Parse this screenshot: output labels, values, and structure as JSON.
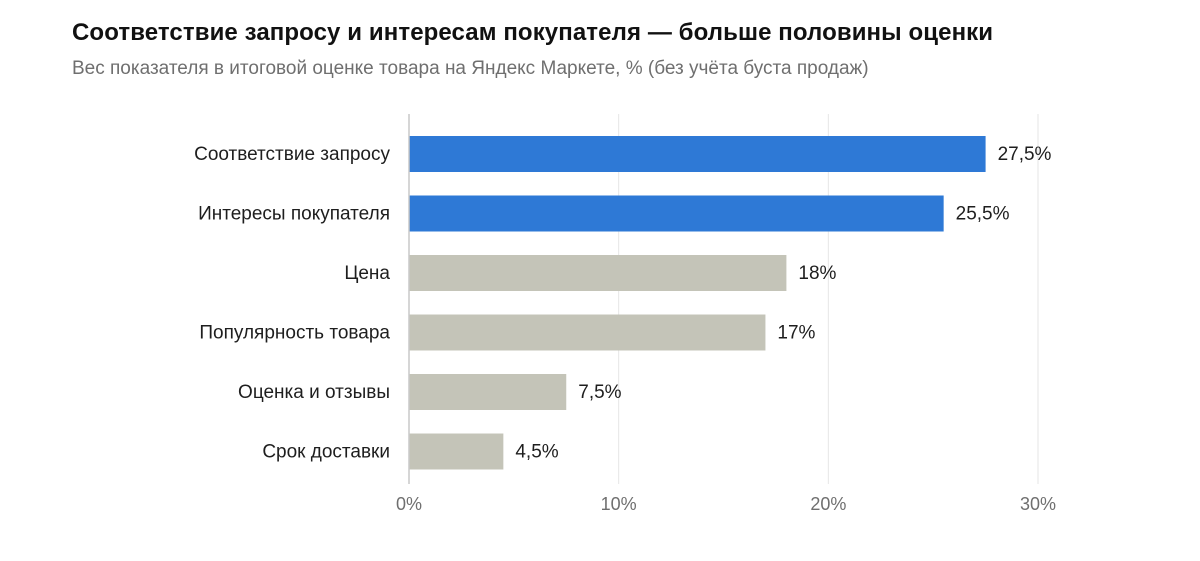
{
  "chart_data": {
    "type": "bar",
    "orientation": "horizontal",
    "title": "Соответствие запросу и интересам покупателя — больше половины оценки",
    "subtitle": "Вес показателя в итоговой оценке товара на Яндекс Маркете, % (без учёта буста продаж)",
    "xlabel": "",
    "ylabel": "",
    "categories": [
      "Соответствие запросу",
      "Интересы покупателя",
      "Цена",
      "Популярность товара",
      "Оценка и отзывы",
      "Срок доставки"
    ],
    "values": [
      27.5,
      25.5,
      18,
      17,
      7.5,
      4.5
    ],
    "data_labels": [
      "27,5%",
      "25,5%",
      "18%",
      "17%",
      "7,5%",
      "4,5%"
    ],
    "highlighted": [
      true,
      true,
      false,
      false,
      false,
      false
    ],
    "xlim": [
      0,
      30
    ],
    "x_ticks": [
      0,
      10,
      20,
      30
    ],
    "x_tick_labels": [
      "0%",
      "10%",
      "20%",
      "30%"
    ],
    "grid": "vertical",
    "legend": "none",
    "colors": {
      "highlight": "#2e79d6",
      "default": "#c4c4b8",
      "axis": "#c9c9c9",
      "grid": "#e6e6e6",
      "label_text": "#1e1e1e",
      "tick_text": "#6f6f6f"
    }
  }
}
